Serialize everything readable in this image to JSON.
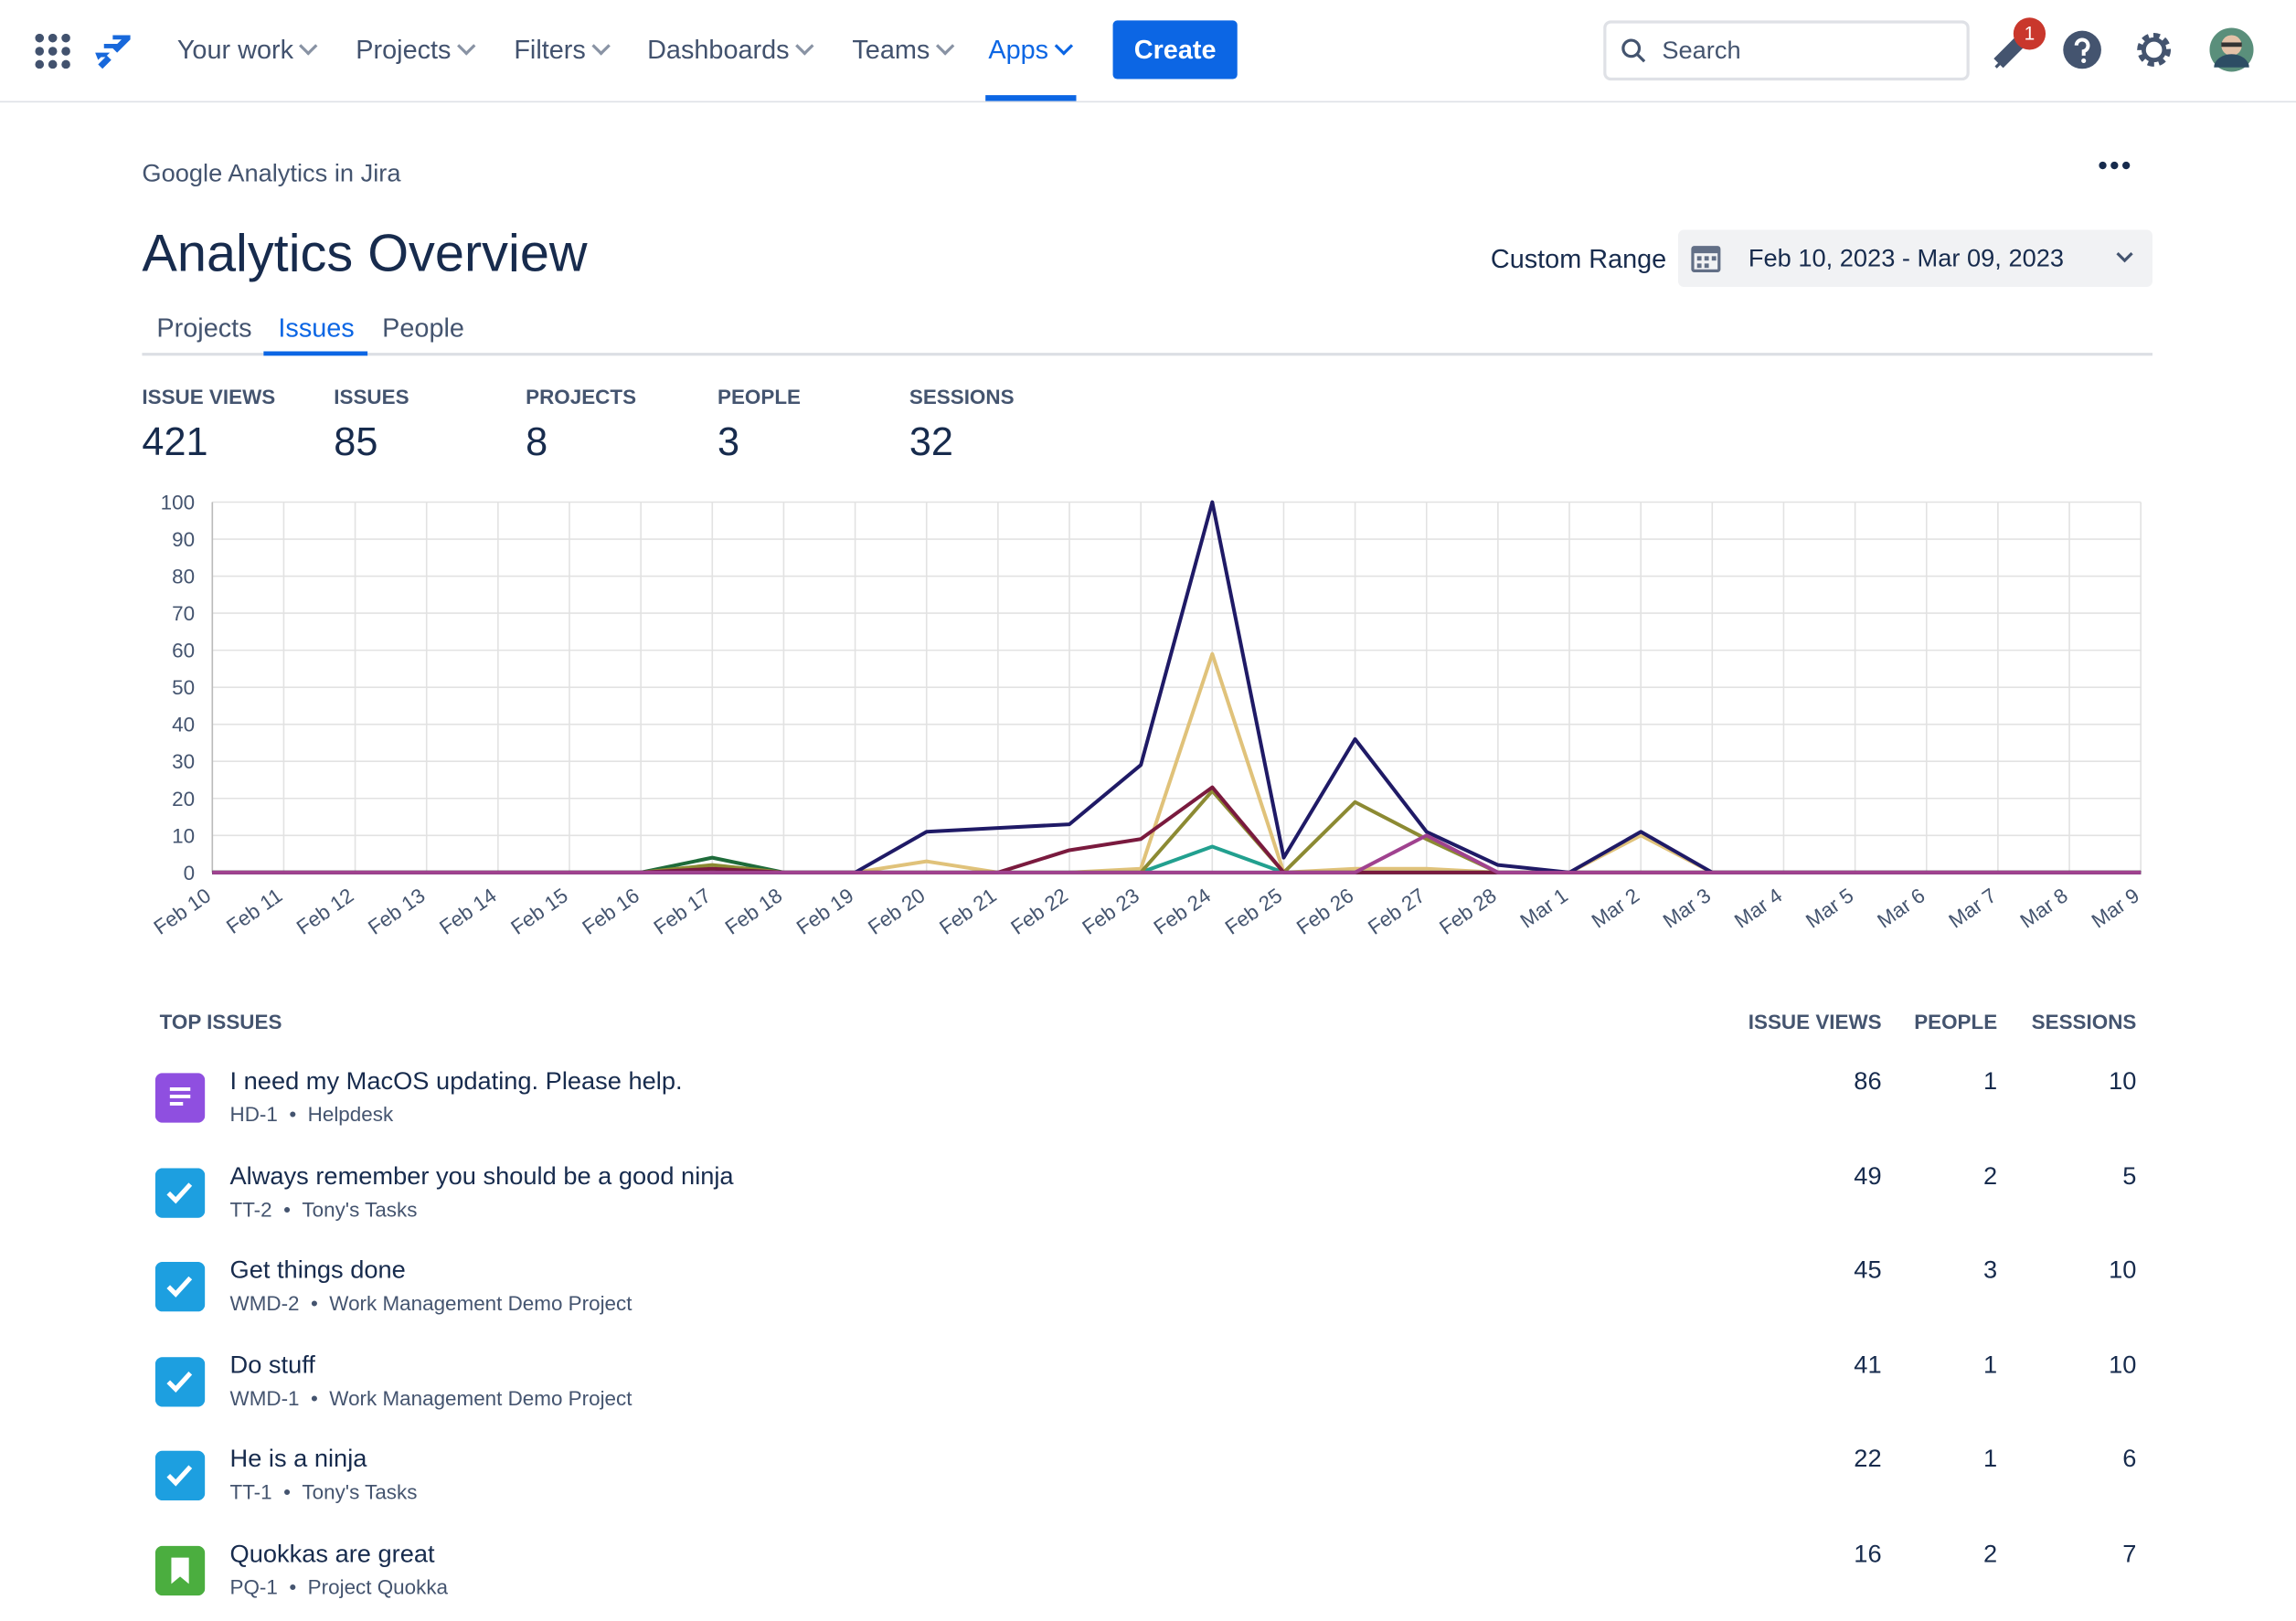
{
  "nav": {
    "items": [
      "Your work",
      "Projects",
      "Filters",
      "Dashboards",
      "Teams",
      "Apps"
    ],
    "create": "Create",
    "search": "Search",
    "notifications": 1
  },
  "header": {
    "breadcrumb": "Google Analytics in Jira",
    "title": "Analytics Overview",
    "range_label": "Custom Range",
    "range": "Feb 10, 2023 - Mar 09, 2023"
  },
  "tabs": [
    "Projects",
    "Issues",
    "People"
  ],
  "stats": [
    {
      "label": "ISSUE VIEWS",
      "value": 421
    },
    {
      "label": "ISSUES",
      "value": 85
    },
    {
      "label": "PROJECTS",
      "value": 8
    },
    {
      "label": "PEOPLE",
      "value": 3
    },
    {
      "label": "SESSIONS",
      "value": 32
    }
  ],
  "chart_data": {
    "type": "line",
    "categories": [
      "Feb 10",
      "Feb 11",
      "Feb 12",
      "Feb 13",
      "Feb 14",
      "Feb 15",
      "Feb 16",
      "Feb 17",
      "Feb 18",
      "Feb 19",
      "Feb 20",
      "Feb 21",
      "Feb 22",
      "Feb 23",
      "Feb 24",
      "Feb 25",
      "Feb 26",
      "Feb 27",
      "Feb 28",
      "Mar 1",
      "Mar 2",
      "Mar 3",
      "Mar 4",
      "Mar 5",
      "Mar 6",
      "Mar 7",
      "Mar 8",
      "Mar 9"
    ],
    "series": [
      {
        "color": "#e0c27a",
        "values": [
          0,
          0,
          0,
          0,
          0,
          0,
          0,
          1,
          0,
          0,
          3,
          0,
          0,
          1,
          59,
          0,
          1,
          1,
          0,
          0,
          10,
          0,
          0,
          0,
          0,
          0,
          0,
          0
        ]
      },
      {
        "color": "#1e6b3a",
        "values": [
          0,
          0,
          0,
          0,
          0,
          0,
          0,
          4,
          0,
          0,
          0,
          0,
          0,
          0,
          0,
          0,
          0,
          0,
          0,
          0,
          0,
          0,
          0,
          0,
          0,
          0,
          0,
          0
        ]
      },
      {
        "color": "#22a08f",
        "values": [
          0,
          0,
          0,
          0,
          0,
          0,
          0,
          0,
          0,
          0,
          0,
          0,
          0,
          0,
          7,
          0,
          0,
          0,
          0,
          0,
          0,
          0,
          0,
          0,
          0,
          0,
          0,
          0
        ]
      },
      {
        "color": "#8c8a33",
        "values": [
          0,
          0,
          0,
          0,
          0,
          0,
          0,
          2,
          0,
          0,
          0,
          0,
          0,
          0,
          22,
          0,
          19,
          9,
          0,
          0,
          0,
          0,
          0,
          0,
          0,
          0,
          0,
          0
        ]
      },
      {
        "color": "#7a1a3e",
        "values": [
          0,
          0,
          0,
          0,
          0,
          0,
          0,
          1,
          0,
          0,
          0,
          0,
          6,
          9,
          23,
          0,
          0,
          0,
          0,
          0,
          0,
          0,
          0,
          0,
          0,
          0,
          0,
          0
        ]
      },
      {
        "color": "#1f1a66",
        "values": [
          0,
          0,
          0,
          0,
          0,
          0,
          0,
          0,
          0,
          0,
          11,
          12,
          13,
          29,
          100,
          4,
          36,
          11,
          2,
          0,
          11,
          0,
          0,
          0,
          0,
          0,
          0,
          0
        ]
      },
      {
        "color": "#a0428f",
        "values": [
          0,
          0,
          0,
          0,
          0,
          0,
          0,
          0,
          0,
          0,
          0,
          0,
          0,
          0,
          0,
          0,
          0,
          10,
          0,
          0,
          0,
          0,
          0,
          0,
          0,
          0,
          0,
          0
        ]
      }
    ],
    "ylim": [
      0,
      100
    ],
    "yticks": [
      0,
      10,
      20,
      30,
      40,
      50,
      60,
      70,
      80,
      90,
      100
    ],
    "grid": true
  },
  "table": {
    "title": "TOP ISSUES",
    "columns": [
      "ISSUE VIEWS",
      "PEOPLE",
      "SESSIONS"
    ],
    "rows": [
      {
        "title": "I need my MacOS updating. Please help.",
        "key": "HD-1",
        "project": "Helpdesk",
        "icon_color": "#8f4fe0",
        "views": 86,
        "people": 1,
        "sessions": 10
      },
      {
        "title": "Always remember you should be a good ninja",
        "key": "TT-2",
        "project": "Tony's Tasks",
        "icon_color": "#1d9fe0",
        "views": 49,
        "people": 2,
        "sessions": 5
      },
      {
        "title": "Get things done",
        "key": "WMD-2",
        "project": "Work Management Demo Project",
        "icon_color": "#1d9fe0",
        "views": 45,
        "people": 3,
        "sessions": 10
      },
      {
        "title": "Do stuff",
        "key": "WMD-1",
        "project": "Work Management Demo Project",
        "icon_color": "#1d9fe0",
        "views": 41,
        "people": 1,
        "sessions": 10
      },
      {
        "title": "He is a ninja",
        "key": "TT-1",
        "project": "Tony's Tasks",
        "icon_color": "#1d9fe0",
        "views": 22,
        "people": 1,
        "sessions": 6
      },
      {
        "title": "Quokkas are great",
        "key": "PQ-1",
        "project": "Project Quokka",
        "icon_color": "#4bae3f",
        "views": 16,
        "people": 2,
        "sessions": 7
      }
    ]
  }
}
